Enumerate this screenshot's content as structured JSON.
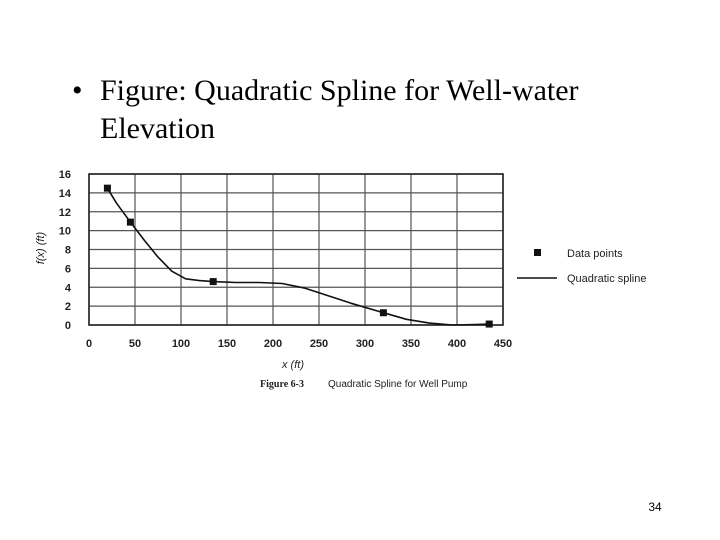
{
  "slide": {
    "bullet": "•",
    "text": "Figure: Quadratic Spline for Well-water Elevation",
    "page_number": "34"
  },
  "chart_data": {
    "type": "line",
    "xlabel": "x (ft)",
    "ylabel": "f(x) (ft)",
    "xlim": [
      0,
      450
    ],
    "ylim": [
      0,
      16
    ],
    "x_ticks": [
      0,
      50,
      100,
      150,
      200,
      250,
      300,
      350,
      400,
      450
    ],
    "y_ticks": [
      0,
      2,
      4,
      6,
      8,
      10,
      12,
      14,
      16
    ],
    "grid": true,
    "legend_position": "right",
    "caption_label": "Figure 6-3",
    "caption_text": "Quadratic Spline for Well Pump",
    "series": [
      {
        "name": "Data points",
        "kind": "markers",
        "x": [
          20,
          45,
          135,
          320,
          435
        ],
        "y": [
          14.5,
          10.9,
          4.6,
          1.3,
          0.1
        ]
      },
      {
        "name": "Quadratic spline",
        "kind": "line",
        "x": [
          20,
          30,
          45,
          60,
          75,
          90,
          105,
          120,
          135,
          160,
          185,
          210,
          235,
          260,
          285,
          320,
          345,
          370,
          395,
          420,
          435
        ],
        "y": [
          14.5,
          12.9,
          10.9,
          9.0,
          7.2,
          5.7,
          4.9,
          4.7,
          4.6,
          4.5,
          4.5,
          4.4,
          3.9,
          3.1,
          2.3,
          1.3,
          0.6,
          0.2,
          0.0,
          0.05,
          0.1
        ]
      }
    ]
  }
}
